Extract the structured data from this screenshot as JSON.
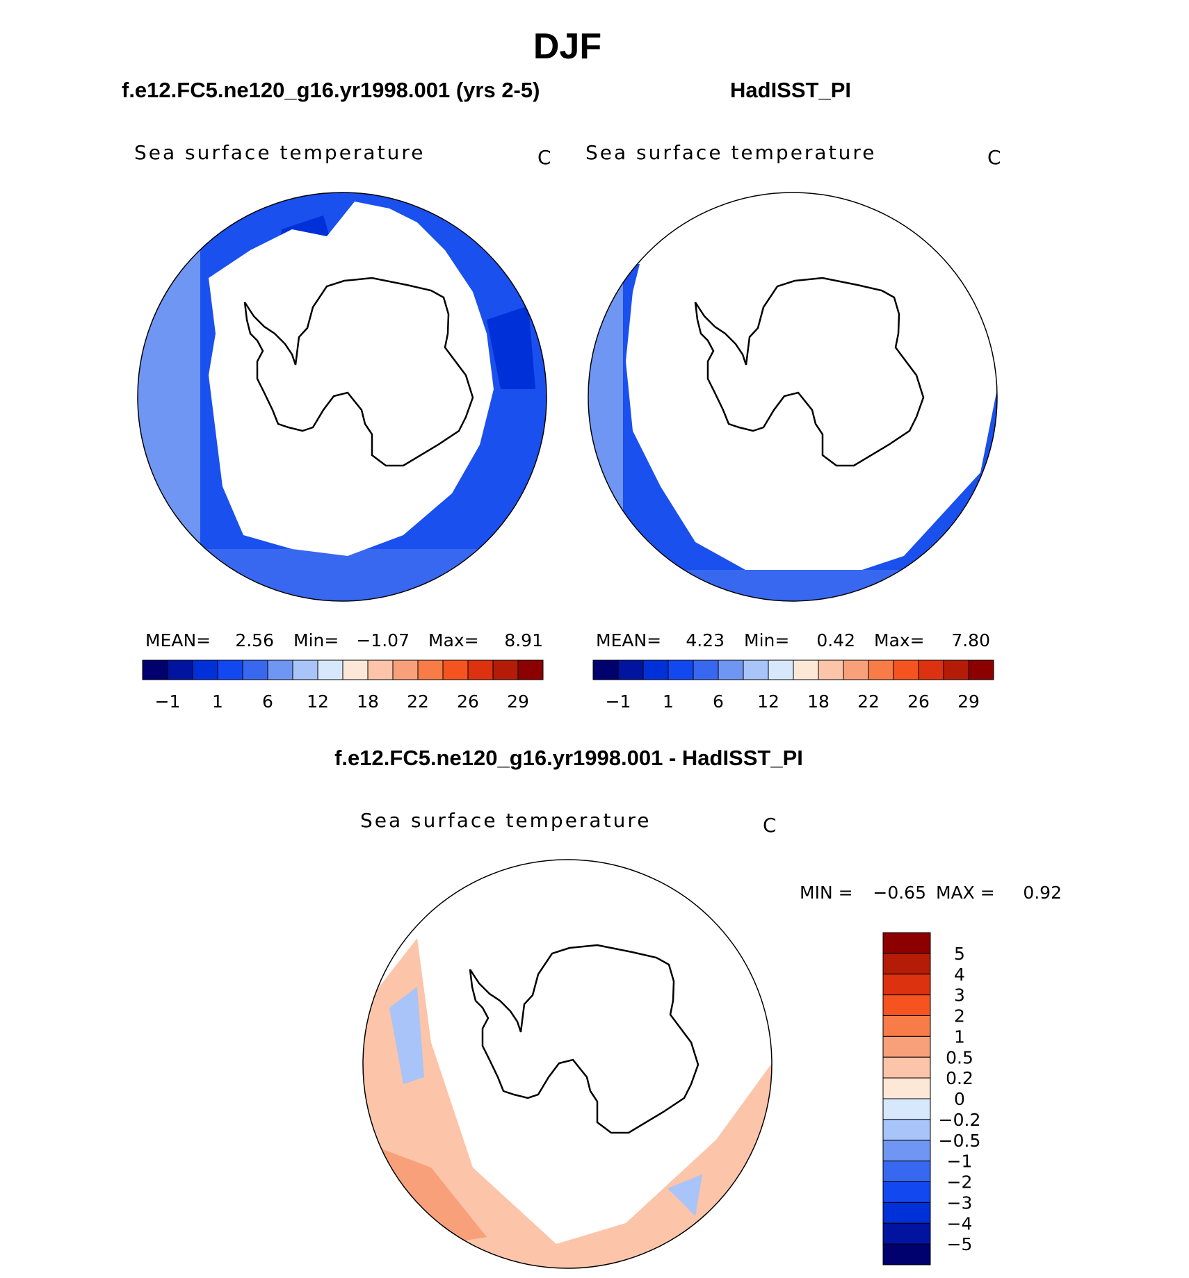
{
  "page_title": "DJF",
  "panels": [
    {
      "case_title": "f.e12.FC5.ne120_g16.yr1998.001 (yrs 2-5)",
      "variable": "Sea surface temperature",
      "units": "C",
      "stats": {
        "mean_label": "MEAN=",
        "mean": "2.56",
        "min_label": "Min=",
        "min": "−1.07",
        "max_label": "Max=",
        "max": "8.91"
      }
    },
    {
      "case_title": "HadISST_PI",
      "variable": "Sea surface temperature",
      "units": "C",
      "stats": {
        "mean_label": "MEAN=",
        "mean": "4.23",
        "min_label": "Min=",
        "min": "0.42",
        "max_label": "Max=",
        "max": "7.80"
      }
    }
  ],
  "abs_colorbar": {
    "colors": [
      "#00006e",
      "#0014a0",
      "#0030d8",
      "#1248f0",
      "#3868f0",
      "#6e96f2",
      "#a8c4f8",
      "#d8e8fc",
      "#fde8d8",
      "#fcc4a8",
      "#f8a07a",
      "#f87c48",
      "#f55420",
      "#dc3210",
      "#b41c08",
      "#8c0000"
    ],
    "tick_labels": [
      "−1",
      "1",
      "6",
      "12",
      "18",
      "22",
      "26",
      "29"
    ]
  },
  "diff_panel": {
    "title": "f.e12.FC5.ne120_g16.yr1998.001 - HadISST_PI",
    "variable": "Sea surface temperature",
    "units": "C",
    "stats": {
      "min_label": "MIN =",
      "min": "−0.65",
      "max_label": "MAX =",
      "max": "0.92"
    }
  },
  "diff_colorbar": {
    "colors": [
      "#8c0000",
      "#b41c08",
      "#dc3210",
      "#f55420",
      "#f87c48",
      "#f8a07a",
      "#fcc4a8",
      "#fde8d8",
      "#d8e8fc",
      "#a8c4f8",
      "#6e96f2",
      "#3868f0",
      "#1248f0",
      "#0030d8",
      "#0014a0",
      "#00006e"
    ],
    "tick_labels": [
      "5",
      "4",
      "3",
      "2",
      "1",
      "0.5",
      "0.2",
      "0",
      "−0.2",
      "−0.5",
      "−1",
      "−2",
      "−3",
      "−4",
      "−5"
    ]
  }
}
